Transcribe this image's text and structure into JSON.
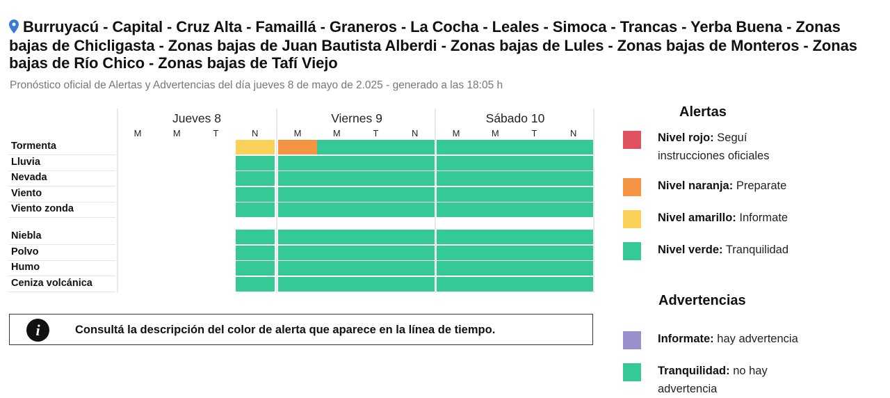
{
  "header": {
    "title": "Burruyacú - Capital - Cruz Alta - Famaillá - Graneros - La Cocha - Leales - Simoca - Trancas - Yerba Buena - Zonas bajas de Chicligasta - Zonas bajas de Juan Bautista Alberdi - Zonas bajas de Lules - Zonas bajas de Monteros - Zonas bajas de Río Chico - Zonas bajas de Tafí Viejo",
    "location_icon": "map-pin-icon",
    "subtitle": "Pronóstico oficial de Alertas y Advertencias del día jueves 8 de mayo de 2.025 - generado a las 18:05 h"
  },
  "timeline": {
    "days": [
      {
        "label": "Jueves 8",
        "periods": [
          "M",
          "M",
          "T",
          "N"
        ]
      },
      {
        "label": "Viernes 9",
        "periods": [
          "M",
          "M",
          "T",
          "N"
        ]
      },
      {
        "label": "Sábado 10",
        "periods": [
          "M",
          "M",
          "T",
          "N"
        ]
      }
    ],
    "alert_rows": [
      {
        "label": "Tormenta",
        "levels": [
          "",
          "",
          "",
          "amarillo",
          "naranja",
          "verde",
          "verde",
          "verde",
          "verde",
          "verde",
          "verde",
          "verde"
        ]
      },
      {
        "label": "Lluvia",
        "levels": [
          "",
          "",
          "",
          "verde",
          "verde",
          "verde",
          "verde",
          "verde",
          "verde",
          "verde",
          "verde",
          "verde"
        ]
      },
      {
        "label": "Nevada",
        "levels": [
          "",
          "",
          "",
          "verde",
          "verde",
          "verde",
          "verde",
          "verde",
          "verde",
          "verde",
          "verde",
          "verde"
        ]
      },
      {
        "label": "Viento",
        "levels": [
          "",
          "",
          "",
          "verde",
          "verde",
          "verde",
          "verde",
          "verde",
          "verde",
          "verde",
          "verde",
          "verde"
        ]
      },
      {
        "label": "Viento zonda",
        "levels": [
          "",
          "",
          "",
          "verde",
          "verde",
          "verde",
          "verde",
          "verde",
          "verde",
          "verde",
          "verde",
          "verde"
        ]
      }
    ],
    "warning_rows": [
      {
        "label": "Niebla",
        "levels": [
          "",
          "",
          "",
          "verde",
          "verde",
          "verde",
          "verde",
          "verde",
          "verde",
          "verde",
          "verde",
          "verde"
        ]
      },
      {
        "label": "Polvo",
        "levels": [
          "",
          "",
          "",
          "verde",
          "verde",
          "verde",
          "verde",
          "verde",
          "verde",
          "verde",
          "verde",
          "verde"
        ]
      },
      {
        "label": "Humo",
        "levels": [
          "",
          "",
          "",
          "verde",
          "verde",
          "verde",
          "verde",
          "verde",
          "verde",
          "verde",
          "verde",
          "verde"
        ]
      },
      {
        "label": "Ceniza volcánica",
        "levels": [
          "",
          "",
          "",
          "verde",
          "verde",
          "verde",
          "verde",
          "verde",
          "verde",
          "verde",
          "verde",
          "verde"
        ]
      }
    ]
  },
  "info": {
    "icon": "info-icon",
    "text": "Consultá la descripción del color de alerta que aparece en la línea de tiempo."
  },
  "legend": {
    "alerts_title": "Alertas",
    "alerts": [
      {
        "name": "Nivel rojo:",
        "desc": "Seguí",
        "desc2": "instrucciones oficiales",
        "color": "#e0525f"
      },
      {
        "name": "Nivel naranja:",
        "desc": "Preparate",
        "color": "#f49443"
      },
      {
        "name": "Nivel amarillo:",
        "desc": "Informate",
        "color": "#fad25a"
      },
      {
        "name": "Nivel verde:",
        "desc": "Tranquilidad",
        "color": "#35c995"
      }
    ],
    "warnings_title": "Advertencias",
    "warnings": [
      {
        "name": "Informate:",
        "desc": "hay advertencia",
        "color": "#9b8fcc"
      },
      {
        "name": "Tranquilidad:",
        "desc": "no hay",
        "desc2": "advertencia",
        "color": "#35c995"
      }
    ]
  },
  "colors": {
    "amarillo": "#fad25a",
    "naranja": "#f49443",
    "verde": "#35c995"
  }
}
